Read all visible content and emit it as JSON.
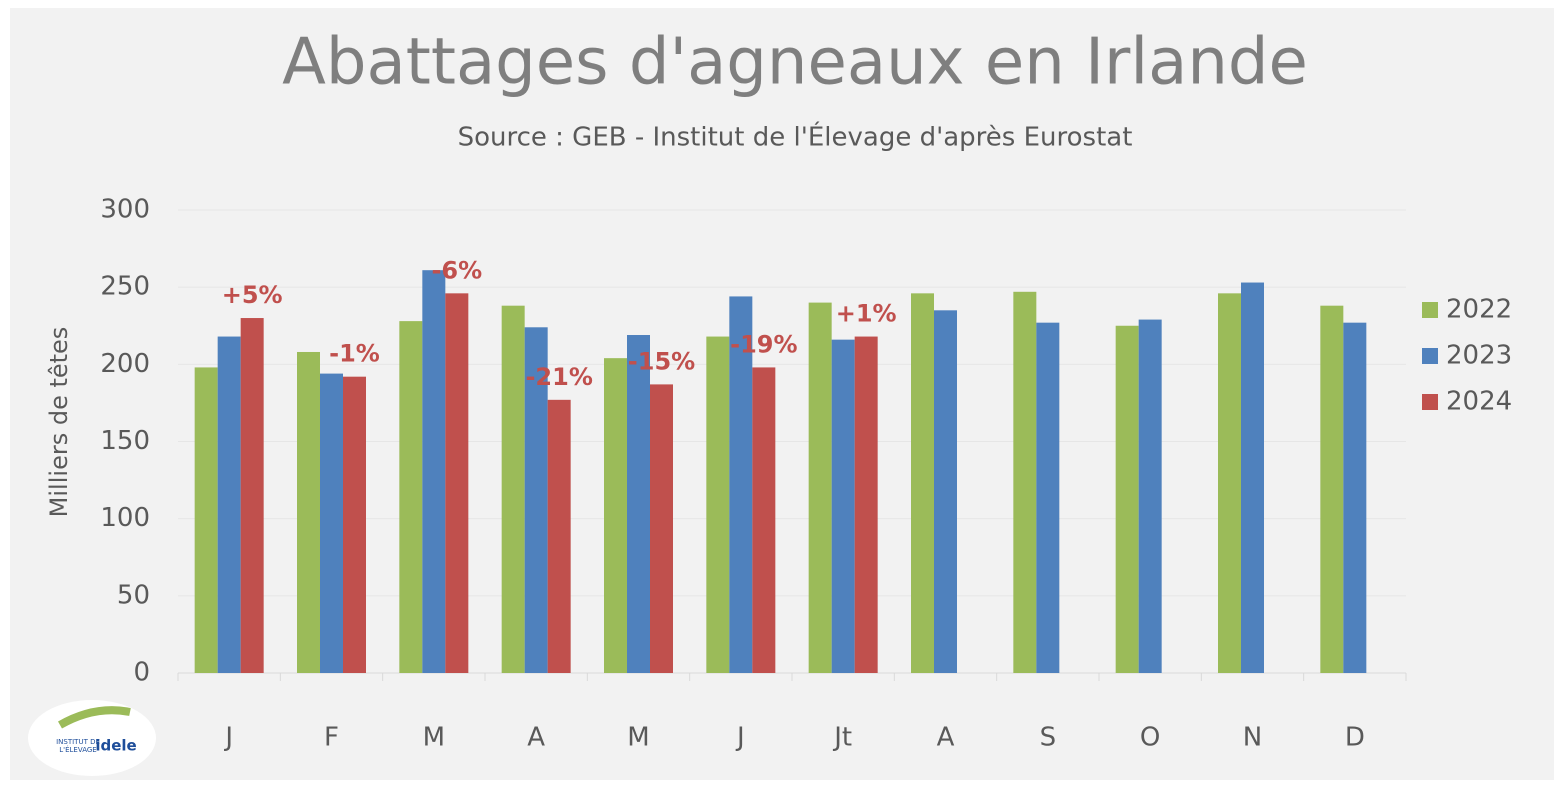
{
  "chart_data": {
    "type": "bar",
    "title": "Abattages d'agneaux en Irlande",
    "subtitle": "Source : GEB - Institut de l'Élevage d'après Eurostat",
    "y_label": "Milliers de têtes",
    "categories": [
      "J",
      "F",
      "M",
      "A",
      "M",
      "J",
      "Jt",
      "A",
      "S",
      "O",
      "N",
      "D"
    ],
    "series": [
      {
        "name": "2022",
        "color": "#9bbb59",
        "values": [
          198,
          208,
          228,
          238,
          204,
          218,
          240,
          246,
          247,
          225,
          246,
          238
        ]
      },
      {
        "name": "2023",
        "color": "#4f81bd",
        "values": [
          218,
          194,
          261,
          224,
          219,
          244,
          216,
          235,
          227,
          229,
          253,
          227
        ]
      },
      {
        "name": "2024",
        "color": "#c0504d",
        "values": [
          230,
          192,
          246,
          177,
          187,
          198,
          218,
          null,
          null,
          null,
          null,
          null
        ]
      }
    ],
    "annotations": [
      "+5%",
      "-1%",
      "-6%",
      "-21%",
      "-15%",
      "-19%",
      "+1%"
    ],
    "ylim": [
      0,
      300
    ],
    "yticks": [
      0,
      50,
      100,
      150,
      200,
      250,
      300
    ],
    "grid": true,
    "legend": "right",
    "logo": {
      "line1": "INSTITUT DE",
      "line2": "L'ÉLEVAGE",
      "brand": "idele"
    }
  }
}
